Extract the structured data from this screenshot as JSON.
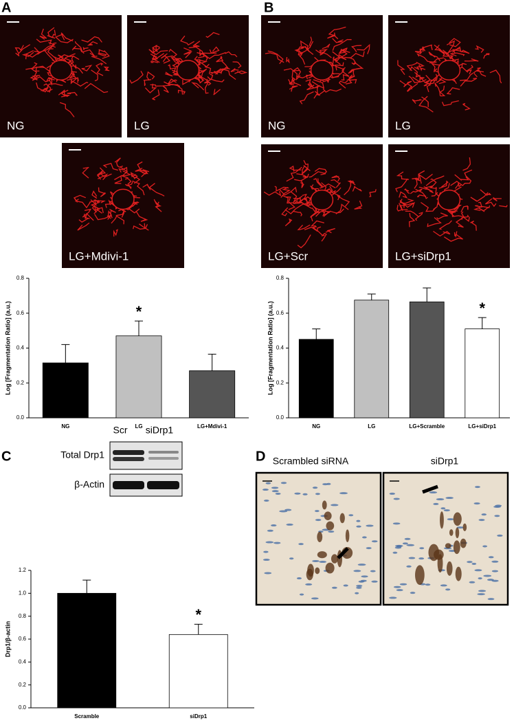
{
  "panel_labels": [
    "A",
    "B",
    "C",
    "D"
  ],
  "micrographs": [
    {
      "label": "NG"
    },
    {
      "label": "LG"
    },
    {
      "label": "LG+Mdivi-1"
    },
    {
      "label": "NG"
    },
    {
      "label": "LG"
    },
    {
      "label": "LG+Scr"
    },
    {
      "label": "LG+siDrp1"
    }
  ],
  "blot": {
    "lanes": [
      "Scr",
      "siDrp1"
    ],
    "rows": [
      "Total Drp1",
      "β-Actin"
    ]
  },
  "histology": [
    "Scrambled siRNA",
    "siDrp1"
  ],
  "chart_data": [
    {
      "type": "bar",
      "y_label": "Log [Fragmentation Ratio] (a.u.)",
      "categories": [
        "NG",
        "LG",
        "LG+Mdivi-1"
      ],
      "values": [
        0.315,
        0.47,
        0.27
      ],
      "errors": [
        0.105,
        0.085,
        0.095
      ],
      "colors": [
        "#000000",
        "#c0c0c0",
        "#555555"
      ],
      "ylim": [
        0,
        0.8
      ],
      "yticks": [
        {
          "value": 0,
          "label": "0.0"
        },
        0.2,
        0.4,
        0.6,
        0.8
      ],
      "annotations": [
        {
          "text": "*",
          "x": "LG"
        }
      ]
    },
    {
      "type": "bar",
      "y_label": "Log [Fragmentation Ratio] (a.u.)",
      "categories": [
        "NG",
        "LG",
        "LG+Scramble",
        "LG+siDrp1"
      ],
      "values": [
        0.45,
        0.675,
        0.665,
        0.51
      ],
      "errors": [
        0.06,
        0.035,
        0.08,
        0.065
      ],
      "colors": [
        "#000000",
        "#c0c0c0",
        "#555555",
        "#ffffff"
      ],
      "ylim": [
        0,
        0.8
      ],
      "yticks": [
        {
          "value": 0,
          "label": "0.0"
        },
        0.2,
        0.4,
        0.6,
        0.8
      ],
      "annotations": [
        {
          "text": "*",
          "x": "LG+siDrp1"
        }
      ]
    },
    {
      "type": "bar",
      "y_label": "Drp1/β-actin",
      "categories": [
        "Scramble",
        "siDrp1"
      ],
      "values": [
        1.0,
        0.64
      ],
      "errors": [
        0.115,
        0.09
      ],
      "colors": [
        "#000000",
        "#ffffff"
      ],
      "ylim": [
        0,
        1.2
      ],
      "yticks": [
        {
          "value": 0,
          "label": "0.0"
        },
        0.2,
        0.4,
        0.6,
        0.8,
        {
          "value": 1,
          "label": "1.0"
        },
        1.2
      ],
      "annotations": [
        {
          "text": "*",
          "x": "siDrp1"
        }
      ]
    }
  ]
}
